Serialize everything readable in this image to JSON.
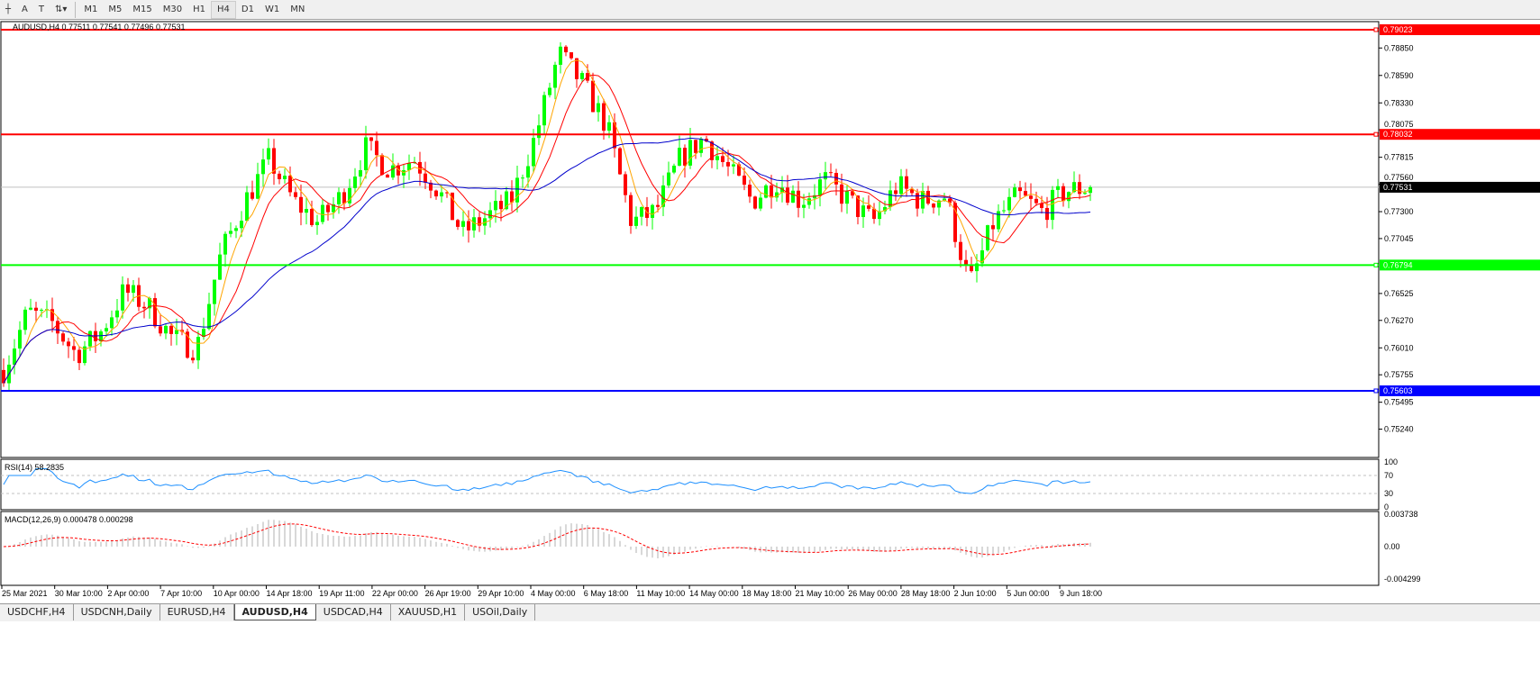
{
  "toolbar": {
    "tools": [
      "A",
      "T"
    ],
    "timeframes": [
      "M1",
      "M5",
      "M15",
      "M30",
      "H1",
      "H4",
      "D1",
      "W1",
      "MN"
    ],
    "active_timeframe": "H4"
  },
  "chart_header": "AUDUSD,H4  0.77511 0.77541 0.77496 0.77531",
  "rsi_label": "RSI(14) 58.2835",
  "macd_label": "MACD(12,26,9) 0.000478 0.000298",
  "colors": {
    "bull": "#00ff00",
    "bear": "#ff0000",
    "ma_fast": "#ff0000",
    "ma_mid": "#ffa500",
    "ma_slow": "#0000cc",
    "rsi": "#1e90ff",
    "macd_signal": "#ff0000"
  },
  "chart_data": {
    "type": "candlestick",
    "price_axis_ticks": [
      "0.78850",
      "0.78590",
      "0.78330",
      "0.78075",
      "0.77815",
      "0.77560",
      "0.77300",
      "0.77045",
      "0.76525",
      "0.76270",
      "0.76010",
      "0.75755",
      "0.75495",
      "0.75240"
    ],
    "ylim": [
      0.7524,
      0.791
    ],
    "current_price": "0.77531",
    "hlines": [
      {
        "value": "0.79023",
        "color": "#ff0000"
      },
      {
        "value": "0.78032",
        "color": "#ff0000"
      },
      {
        "value": "0.76794",
        "color": "#00ff00"
      },
      {
        "value": "0.75603",
        "color": "#0000ff"
      }
    ],
    "x_labels": [
      "25 Mar 2021",
      "30 Mar 10:00",
      "2 Apr 00:00",
      "7 Apr 10:00",
      "10 Apr 00:00",
      "14 Apr 18:00",
      "19 Apr 11:00",
      "22 Apr 00:00",
      "26 Apr 19:00",
      "29 Apr 10:00",
      "4 May 00:00",
      "6 May 18:00",
      "11 May 10:00",
      "14 May 00:00",
      "18 May 18:00",
      "21 May 10:00",
      "26 May 00:00",
      "28 May 18:00",
      "2 Jun 10:00",
      "5 Jun 00:00",
      "9 Jun 18:00"
    ],
    "approx_close_path": [
      0.758,
      0.7635,
      0.7625,
      0.7595,
      0.7615,
      0.7655,
      0.764,
      0.761,
      0.76,
      0.769,
      0.774,
      0.778,
      0.774,
      0.772,
      0.7745,
      0.779,
      0.777,
      0.778,
      0.775,
      0.771,
      0.7725,
      0.774,
      0.78,
      0.788,
      0.785,
      0.781,
      0.772,
      0.773,
      0.778,
      0.78,
      0.777,
      0.774,
      0.776,
      0.774,
      0.776,
      0.774,
      0.772,
      0.7755,
      0.774,
      0.7745,
      0.766,
      0.772,
      0.7745,
      0.773,
      0.775,
      0.7753
    ],
    "rsi_levels": [
      "100",
      "70",
      "30",
      "0"
    ],
    "macd_ticks": [
      "0.003738",
      "0.00",
      "-0.004299"
    ]
  },
  "symbol_tabs": [
    "USDCHF,H4",
    "USDCNH,Daily",
    "EURUSD,H4",
    "AUDUSD,H4",
    "USDCAD,H4",
    "XAUUSD,H1",
    "USOil,Daily"
  ],
  "active_tab": "AUDUSD,H4"
}
